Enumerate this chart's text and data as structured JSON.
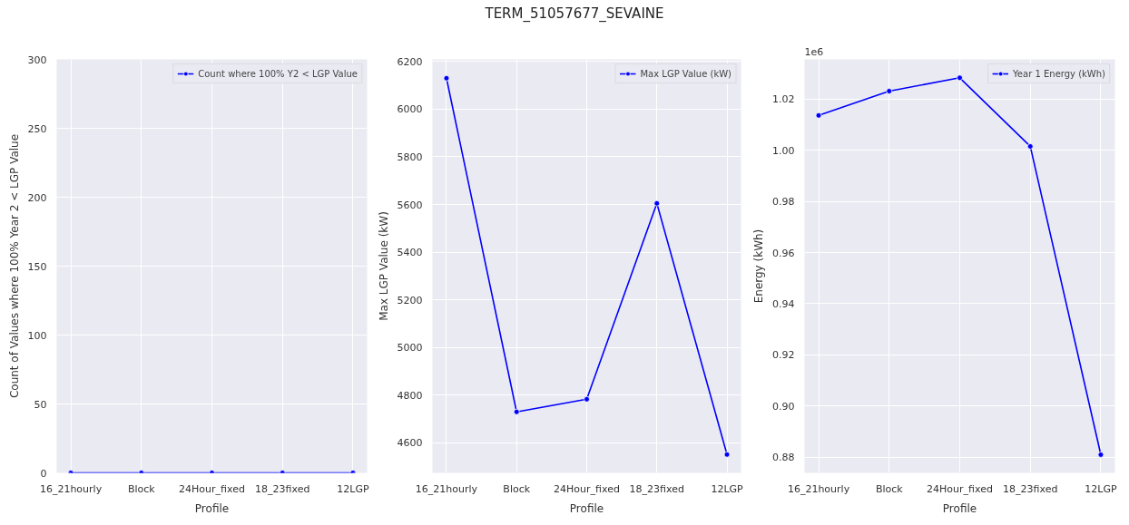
{
  "chart_data": [
    {
      "type": "line",
      "xlabel": "Profile",
      "ylabel": "Count of Values where 100% Year 2 < LGP Value",
      "categories": [
        "16_21hourly",
        "Block",
        "24Hour_fixed",
        "18_23fixed",
        "12LGP"
      ],
      "series": [
        {
          "name": "Count where 100% Y2 < LGP Value",
          "color": "#0000ff",
          "values": [
            0,
            0,
            0,
            0,
            0
          ]
        }
      ],
      "ylim": [
        0,
        300
      ],
      "yticks": [
        0,
        50,
        100,
        150,
        200,
        250,
        300
      ],
      "grid": true,
      "legend": "top right",
      "marker": "circle"
    },
    {
      "type": "line",
      "title": "TERM_51057677_SEVAINE",
      "xlabel": "Profile",
      "ylabel": "Max LGP Value (kW)",
      "categories": [
        "16_21hourly",
        "Block",
        "24Hour_fixed",
        "18_23fixed",
        "12LGP"
      ],
      "series": [
        {
          "name": "Max LGP Value (kW)",
          "color": "#0000ff",
          "values": [
            6130,
            4730,
            4783,
            5605,
            4551
          ]
        }
      ],
      "ylim": [
        4474,
        6209
      ],
      "yticks": [
        4600,
        4800,
        5000,
        5200,
        5400,
        5600,
        5800,
        6000,
        6200
      ],
      "grid": true,
      "legend": "top right",
      "marker": "circle"
    },
    {
      "type": "line",
      "xlabel": "Profile",
      "ylabel": "Energy (kWh)",
      "annotations": [
        "1e6"
      ],
      "categories": [
        "16_21hourly",
        "Block",
        "24Hour_fixed",
        "18_23fixed",
        "12LGP"
      ],
      "series": [
        {
          "name": "Year 1 Energy (kWh)",
          "color": "#0000ff",
          "values": [
            1.0136,
            1.0231,
            1.0283,
            1.0015,
            0.881
          ]
        }
      ],
      "ylim": [
        0.8739,
        1.0355
      ],
      "yticks": [
        0.88,
        {
          "value": 0.9,
          "label": "0.90"
        },
        0.92,
        0.94,
        0.96,
        0.98,
        {
          "value": 1.0,
          "label": "1.00"
        },
        1.02
      ],
      "grid": true,
      "legend": "top right",
      "marker": "circle"
    }
  ]
}
